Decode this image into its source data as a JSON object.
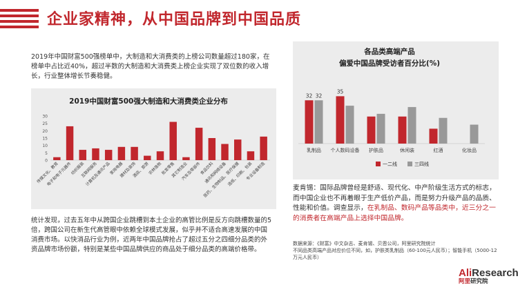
{
  "header": {
    "title": "企业家精神，从中国品牌到中国品质"
  },
  "paragraph1": "2019年中国财富500强榜单中，大制造和大消费类的上榜公司数量超过180家，在榜单中占比近40%，超过半数的大制造和大消费类上榜企业实现了双位数的收入增长，行业整体增长节奏稳健。",
  "paragraph2": "统计发现，过去五年中从跨国企业跳槽到本土企业的高管比例是反方向跳槽数量的5倍，跨国公司在新生代高管眼中依赖全球模式发展，似乎并不适合高速发展的中国消费市场。以快消品行业为例，近两年中国品牌抢占了超过五分之四细分品类的外资品牌市场份额，特别是某些中国品牌供应的商品处于细分品类的高端价格带。",
  "paragraph3": {
    "normal": "麦肯锡：国际品牌曾经是舒适、现代化、中产阶级生活方式的标志，而中国企业也不再着眼于生产低价产品，而是努力升级产品的品质、性能和价值。调查显示，",
    "highlight": "在乳制品、数码产品等品类中，近三分之一的消费者在高端产品上选择中国品牌。"
  },
  "source": {
    "line1": "数据来源：《财富》中文杂志、麦肯锡、贝恩公司，阿里研究院统计",
    "line2": "不同品类高端产品对应价位不同，如，护肤类乳制品（60-100元人民币）；智能手机（5000-12万元人民币）"
  },
  "logo": {
    "ali": "Ali",
    "research": "Research",
    "sub_ali": "阿里",
    "sub_rest": "研究院"
  },
  "colors": {
    "accent": "#c1272d",
    "gray": "#999999",
    "panel": "#ececec"
  },
  "chart_data": [
    {
      "type": "bar",
      "title": "2019中国财富500强大制造和大消费类企业分布",
      "categories": [
        "传媒文化、教育",
        "电子和电子元器件",
        "纺织服装",
        "互联网服务",
        "计算机及通讯产品",
        "家用电器",
        "建材及装饰",
        "酒店、旅游",
        "农林渔牧",
        "批发零售",
        "其它制造业",
        "汽车及零部件",
        "食品饮料",
        "通讯和网络设备",
        "医药、生物制品、医疗保健",
        "造纸、印刷、包装",
        "专业设备制造"
      ],
      "values": [
        2,
        23,
        7,
        8,
        7,
        9,
        9,
        3,
        6,
        26,
        2,
        22,
        15,
        11,
        14,
        6,
        16
      ],
      "yticks": [
        0,
        5,
        10,
        15,
        20,
        25,
        30
      ],
      "ylim": [
        0,
        30
      ],
      "grid": false
    },
    {
      "type": "bar",
      "title": "各品类高端产品",
      "subtitle": "偏爱中国品牌受访者百分比(%)",
      "categories": [
        "乳制品",
        "个人数码设备",
        "护肤品",
        "休闲装",
        "红酒",
        "化妆品"
      ],
      "series": [
        {
          "name": "一二线",
          "values": [
            32,
            35,
            20,
            20,
            11,
            0
          ],
          "color": "#c1272d"
        },
        {
          "name": "三四线",
          "values": [
            32,
            28,
            22,
            27,
            19,
            14
          ],
          "color": "#999999"
        }
      ],
      "value_labels": [
        "32",
        "32",
        "35"
      ],
      "ylim": [
        0,
        40
      ],
      "legend_position": "bottom-right"
    }
  ]
}
